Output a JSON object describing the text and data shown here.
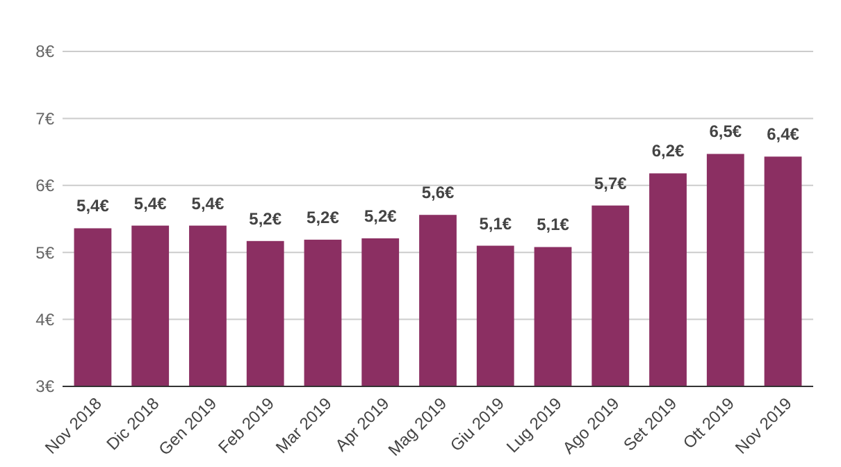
{
  "chart_data": {
    "type": "bar",
    "categories": [
      "Nov 2018",
      "Dic 2018",
      "Gen 2019",
      "Feb 2019",
      "Mar 2019",
      "Apr 2019",
      "Mag 2019",
      "Giu 2019",
      "Lug 2019",
      "Ago 2019",
      "Set 2019",
      "Ott 2019",
      "Nov 2019"
    ],
    "values": [
      5.36,
      5.4,
      5.4,
      5.17,
      5.19,
      5.21,
      5.56,
      5.1,
      5.08,
      5.7,
      6.18,
      6.47,
      6.43
    ],
    "value_labels": [
      "5,4€",
      "5,4€",
      "5,4€",
      "5,2€",
      "5,2€",
      "5,2€",
      "5,6€",
      "5,1€",
      "5,1€",
      "5,7€",
      "6,2€",
      "6,5€",
      "6,4€"
    ],
    "color": "#8b2f62",
    "ylim": [
      3,
      8
    ],
    "yticks": [
      {
        "value": 3,
        "label": "3€"
      },
      {
        "value": 4,
        "label": "4€"
      },
      {
        "value": 5,
        "label": "5€"
      },
      {
        "value": 6,
        "label": "6€"
      },
      {
        "value": 7,
        "label": "7€"
      },
      {
        "value": 8,
        "label": "8€"
      }
    ],
    "grid": "y"
  }
}
